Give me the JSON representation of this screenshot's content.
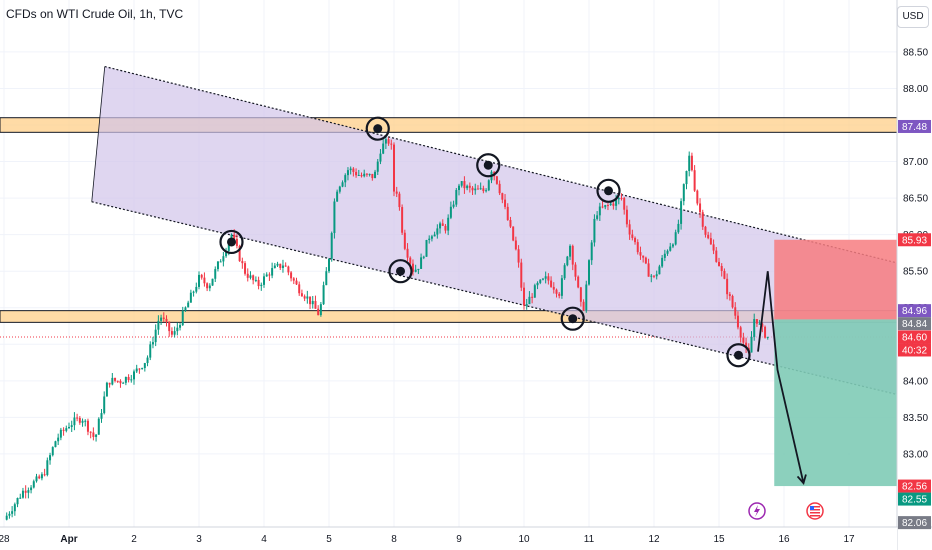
{
  "header": {
    "title": "CFDs on WTI Crude Oil, 1h, TVC",
    "currency_button": "USD"
  },
  "colors": {
    "up": "#089981",
    "down": "#f23645",
    "channel_fill": "#d1c4e9",
    "zone_fill": "#ffcc80",
    "stop_fill": "#f77c80",
    "target_fill": "#7fcbb6",
    "current_price": "#f23645"
  },
  "chart_data": {
    "type": "candlestick",
    "symbol": "CFDs on WTI Crude Oil",
    "interval": "1h",
    "source": "TVC",
    "y_range": [
      82.0,
      88.8
    ],
    "y_ticks": [
      83.0,
      83.5,
      84.0,
      84.5,
      85.0,
      85.5,
      86.0,
      86.5,
      87.0,
      87.5,
      88.0,
      88.5
    ],
    "y_tick_labels": [
      "83.00",
      "83.50",
      "84.00",
      "84.50",
      "85.00",
      "85.50",
      "86.00",
      "86.50",
      "87.00",
      "87.50",
      "88.00",
      "88.50"
    ],
    "x_ticks": [
      {
        "day": 0,
        "label": "28"
      },
      {
        "day": 1,
        "label": "Apr"
      },
      {
        "day": 2,
        "label": "2"
      },
      {
        "day": 3,
        "label": "3"
      },
      {
        "day": 4,
        "label": "4"
      },
      {
        "day": 5,
        "label": "5"
      },
      {
        "day": 6,
        "label": "8"
      },
      {
        "day": 7,
        "label": "9"
      },
      {
        "day": 8,
        "label": "10"
      },
      {
        "day": 9,
        "label": "11"
      },
      {
        "day": 10,
        "label": "12"
      },
      {
        "day": 11,
        "label": "15"
      },
      {
        "day": 12,
        "label": "16"
      },
      {
        "day": 13,
        "label": "17"
      }
    ],
    "price_path": [
      [
        0.0,
        82.1
      ],
      [
        0.3,
        82.5
      ],
      [
        0.6,
        82.7
      ],
      [
        0.8,
        83.2
      ],
      [
        1.0,
        83.4
      ],
      [
        1.2,
        83.5
      ],
      [
        1.4,
        83.2
      ],
      [
        1.6,
        84.0
      ],
      [
        1.8,
        84.0
      ],
      [
        2.0,
        84.1
      ],
      [
        2.2,
        84.3
      ],
      [
        2.4,
        84.9
      ],
      [
        2.6,
        84.6
      ],
      [
        2.8,
        85.0
      ],
      [
        3.0,
        85.4
      ],
      [
        3.15,
        85.3
      ],
      [
        3.3,
        85.6
      ],
      [
        3.5,
        86.0
      ],
      [
        3.7,
        85.5
      ],
      [
        3.9,
        85.3
      ],
      [
        4.1,
        85.5
      ],
      [
        4.3,
        85.6
      ],
      [
        4.5,
        85.3
      ],
      [
        4.7,
        85.1
      ],
      [
        4.85,
        84.9
      ],
      [
        5.0,
        85.7
      ],
      [
        5.1,
        86.6
      ],
      [
        5.3,
        86.9
      ],
      [
        5.5,
        86.8
      ],
      [
        5.7,
        86.8
      ],
      [
        5.8,
        87.2
      ],
      [
        5.95,
        87.3
      ],
      [
        6.0,
        86.6
      ],
      [
        6.05,
        86.6
      ],
      [
        6.15,
        85.9
      ],
      [
        6.3,
        85.5
      ],
      [
        6.4,
        85.6
      ],
      [
        6.55,
        86.0
      ],
      [
        6.7,
        86.1
      ],
      [
        6.8,
        86.1
      ],
      [
        7.0,
        86.7
      ],
      [
        7.2,
        86.6
      ],
      [
        7.4,
        86.6
      ],
      [
        7.5,
        86.9
      ],
      [
        7.6,
        86.7
      ],
      [
        7.75,
        86.2
      ],
      [
        7.9,
        85.7
      ],
      [
        8.0,
        85.0
      ],
      [
        8.2,
        85.3
      ],
      [
        8.35,
        85.4
      ],
      [
        8.55,
        85.2
      ],
      [
        8.7,
        85.9
      ],
      [
        8.8,
        85.4
      ],
      [
        8.9,
        84.9
      ],
      [
        9.0,
        85.6
      ],
      [
        9.1,
        86.3
      ],
      [
        9.3,
        86.4
      ],
      [
        9.5,
        86.5
      ],
      [
        9.6,
        86.1
      ],
      [
        9.75,
        85.8
      ],
      [
        9.9,
        85.5
      ],
      [
        10.0,
        85.4
      ],
      [
        10.2,
        85.8
      ],
      [
        10.35,
        86.0
      ],
      [
        10.45,
        86.6
      ],
      [
        10.55,
        87.1
      ],
      [
        10.65,
        86.5
      ],
      [
        10.8,
        86.0
      ],
      [
        11.0,
        85.6
      ],
      [
        11.1,
        85.3
      ],
      [
        11.25,
        84.9
      ],
      [
        11.35,
        84.6
      ],
      [
        11.45,
        84.3
      ],
      [
        11.55,
        84.9
      ],
      [
        11.65,
        84.7
      ],
      [
        11.75,
        84.6
      ]
    ],
    "last_price": 84.6,
    "price_tags": [
      {
        "value": 87.48,
        "label": "87.48",
        "color": "#7e57c2"
      },
      {
        "value": 85.93,
        "label": "85.93",
        "color": "#f23645"
      },
      {
        "value": 84.96,
        "label": "84.96",
        "color": "#7e57c2"
      },
      {
        "value": 84.84,
        "label": "84.84",
        "color": "#787b86"
      },
      {
        "value": 84.6,
        "label": "84.60",
        "color": "#f23645"
      },
      {
        "value": 82.56,
        "label": "82.56",
        "color": "#f23645"
      },
      {
        "value": 82.55,
        "label": "82.55",
        "color": "#089981"
      },
      {
        "value": 82.06,
        "label": "82.06",
        "color": "#787b86"
      }
    ],
    "countdown": "40:32",
    "resistance_zone": [
      87.4,
      87.6
    ],
    "support_zone": [
      84.8,
      84.96
    ],
    "channel": {
      "upper_start": [
        1.55,
        88.3
      ],
      "upper_end": [
        13.8,
        85.6
      ],
      "lower_start": [
        1.35,
        86.45
      ],
      "lower_end": [
        13.8,
        83.8
      ]
    },
    "touch_points": [
      [
        3.5,
        85.9
      ],
      [
        5.75,
        87.45
      ],
      [
        6.1,
        85.5
      ],
      [
        7.45,
        86.95
      ],
      [
        8.75,
        84.85
      ],
      [
        9.3,
        86.6
      ],
      [
        11.3,
        84.35
      ]
    ],
    "trade": {
      "entry": 84.84,
      "stop": 85.93,
      "target": 82.56,
      "start_day": 11.85
    },
    "projection": [
      [
        11.6,
        84.4
      ],
      [
        11.75,
        85.5
      ],
      [
        11.9,
        84.15
      ],
      [
        12.3,
        82.6
      ]
    ]
  }
}
